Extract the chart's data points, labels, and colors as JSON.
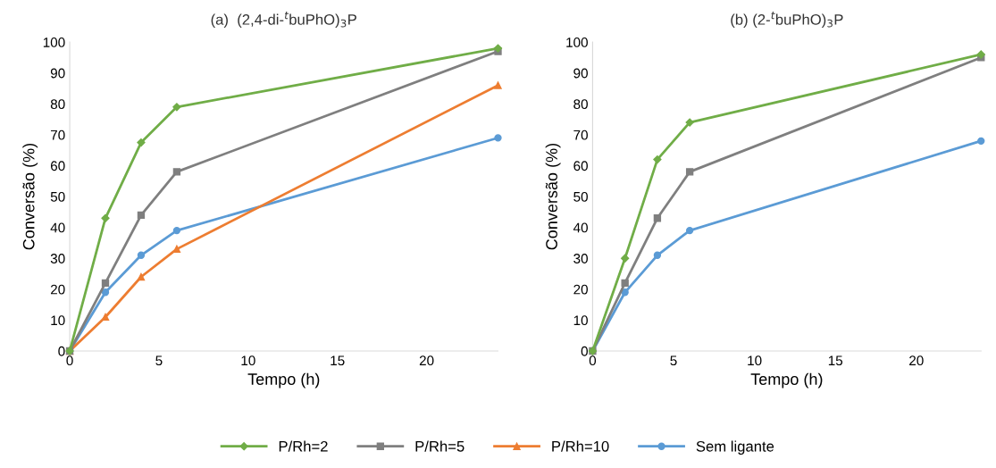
{
  "chart_data": [
    {
      "type": "line",
      "title": "(a)  (2,4-di-$^{t}$buPhO)$_{3}$P",
      "xlabel": "Tempo (h)",
      "ylabel": "Conversão (%)",
      "x": [
        0,
        2,
        4,
        6,
        24
      ],
      "xlim": [
        0,
        24
      ],
      "xticks": [
        0,
        5,
        10,
        15,
        20
      ],
      "ylim": [
        0,
        100
      ],
      "yticks": [
        0,
        10,
        20,
        30,
        40,
        50,
        60,
        70,
        80,
        90,
        100
      ],
      "grid": false,
      "legend": "bottom",
      "series": [
        {
          "name": "P/Rh=2",
          "color": "#70ad47",
          "marker": "diamond",
          "values": [
            0,
            43,
            67.5,
            79,
            98
          ]
        },
        {
          "name": "P/Rh=5",
          "color": "#7f7f7f",
          "marker": "square",
          "values": [
            0,
            22,
            44,
            58,
            97
          ]
        },
        {
          "name": "P/Rh=10",
          "color": "#ed7d31",
          "marker": "triangle",
          "values": [
            0,
            11,
            24,
            33,
            86
          ]
        },
        {
          "name": "Sem ligante",
          "color": "#5b9bd5",
          "marker": "circle",
          "values": [
            0,
            19,
            31,
            39,
            69
          ]
        }
      ]
    },
    {
      "type": "line",
      "title": "(b) (2-$^{t}$buPhO)$_{3}$P",
      "xlabel": "Tempo (h)",
      "ylabel": "Conversão (%)",
      "x": [
        0,
        2,
        4,
        6,
        24
      ],
      "xlim": [
        0,
        24
      ],
      "xticks": [
        0,
        5,
        10,
        15,
        20
      ],
      "ylim": [
        0,
        100
      ],
      "yticks": [
        0,
        10,
        20,
        30,
        40,
        50,
        60,
        70,
        80,
        90,
        100
      ],
      "grid": false,
      "legend": "bottom",
      "series": [
        {
          "name": "P/Rh=2",
          "color": "#70ad47",
          "marker": "diamond",
          "values": [
            0,
            30,
            62,
            74,
            96
          ]
        },
        {
          "name": "P/Rh=5",
          "color": "#7f7f7f",
          "marker": "square",
          "values": [
            0,
            22,
            43,
            58,
            95
          ]
        },
        {
          "name": "Sem ligante",
          "color": "#5b9bd5",
          "marker": "circle",
          "values": [
            0,
            19,
            31,
            39,
            68
          ]
        }
      ]
    }
  ]
}
